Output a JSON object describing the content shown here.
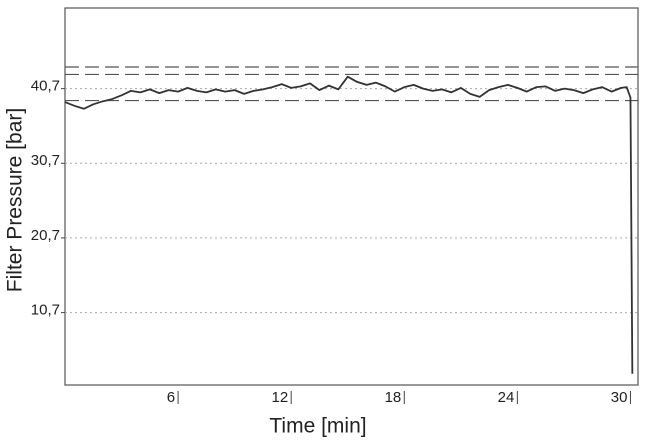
{
  "chart_data": {
    "type": "line",
    "x_label": "Time [min]",
    "y_label": "Filter Pressure [bar]",
    "x": [
      0,
      0.5,
      1,
      1.5,
      2,
      2.5,
      3,
      3.5,
      4,
      4.5,
      5,
      5.5,
      6,
      6.5,
      7,
      7.5,
      8,
      8.5,
      9,
      9.5,
      10,
      10.5,
      11,
      11.5,
      12,
      12.5,
      13,
      13.5,
      14,
      14.5,
      15,
      15.5,
      16,
      16.5,
      17,
      17.5,
      18,
      18.5,
      19,
      19.5,
      20,
      20.5,
      21,
      21.5,
      22,
      22.5,
      23,
      23.5,
      24,
      24.5,
      25,
      25.5,
      26,
      26.5,
      27,
      27.5,
      28,
      28.5,
      29,
      29.5,
      29.8,
      30,
      30.1
    ],
    "series": [
      {
        "color": "#333333",
        "values": [
          38.9,
          38.4,
          38.0,
          38.6,
          39.0,
          39.3,
          39.8,
          40.4,
          40.2,
          40.6,
          40.1,
          40.5,
          40.3,
          40.8,
          40.4,
          40.2,
          40.6,
          40.3,
          40.5,
          40.0,
          40.4,
          40.6,
          40.9,
          41.3,
          40.8,
          41.0,
          41.4,
          40.5,
          41.1,
          40.6,
          42.3,
          41.6,
          41.2,
          41.5,
          41.0,
          40.3,
          40.9,
          41.2,
          40.7,
          40.4,
          40.6,
          40.2,
          40.8,
          40.0,
          39.6,
          40.5,
          40.9,
          41.2,
          40.8,
          40.3,
          40.9,
          41.0,
          40.4,
          40.7,
          40.5,
          40.1,
          40.6,
          40.9,
          40.3,
          40.8,
          40.9,
          39.5,
          2.5
        ]
      }
    ],
    "reference_lines": [
      43.6,
      42.6,
      39.1
    ],
    "xlim": [
      0,
      30.4
    ],
    "ylim": [
      1,
      51.5
    ],
    "xticks": [
      6,
      12,
      18,
      24,
      30
    ],
    "yticks": [
      {
        "value": 10.7,
        "label": "10,7"
      },
      {
        "value": 20.7,
        "label": "20,7"
      },
      {
        "value": 30.7,
        "label": "30,7"
      },
      {
        "value": 40.7,
        "label": "40,7"
      }
    ],
    "grid": true
  }
}
